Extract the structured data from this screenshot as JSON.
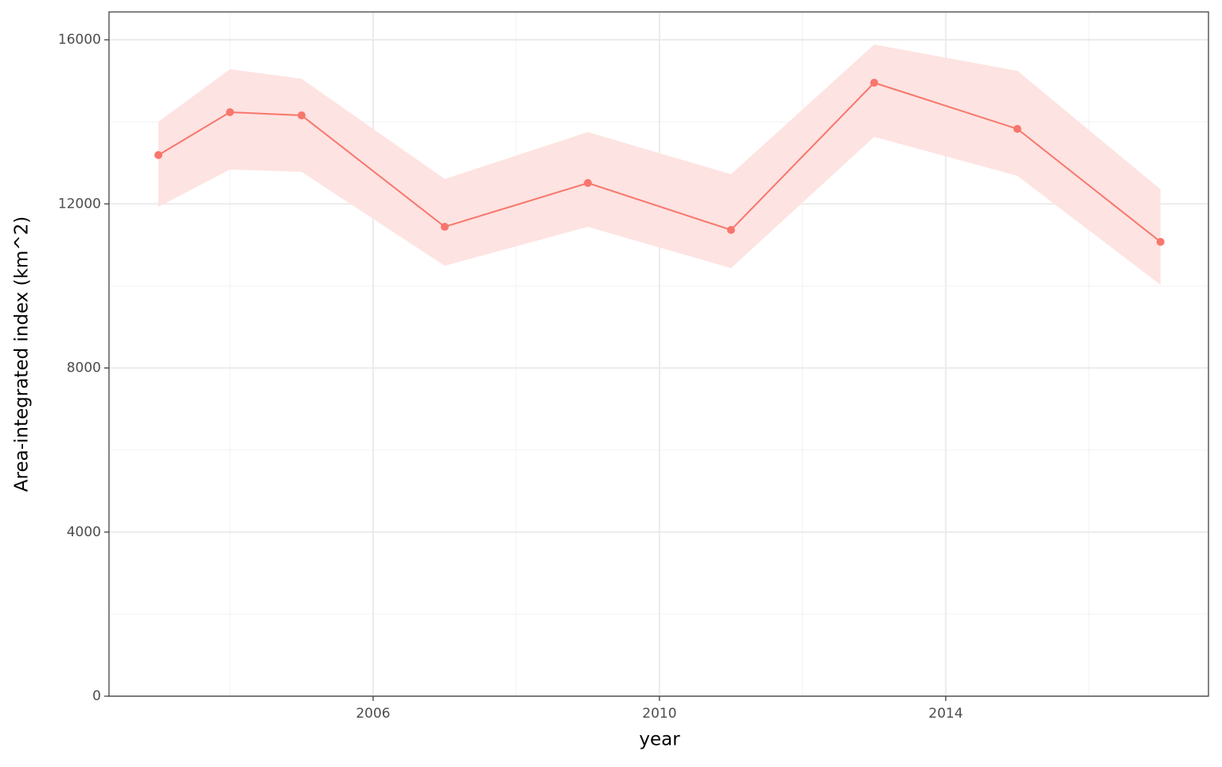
{
  "chart_data": {
    "type": "line",
    "x_label": "year",
    "y_label": "Area-integrated index (km^2)",
    "x": [
      2003,
      2004,
      2005,
      2007,
      2009,
      2011,
      2013,
      2015,
      2017
    ],
    "values": [
      13190,
      14235,
      14158,
      11442,
      12509,
      11365,
      14953,
      13828,
      11074
    ],
    "upper": [
      14003,
      15282,
      15050,
      12606,
      13750,
      12722,
      15884,
      15244,
      12354
    ],
    "lower": [
      11927,
      12839,
      12781,
      10492,
      11442,
      10434,
      13634,
      12684,
      10027
    ],
    "color": "#f8766d",
    "band_color": "#fde3e1",
    "xlim": [
      2002.31,
      2017.67
    ],
    "ylim": [
      0,
      16679
    ],
    "xticks": [
      2006,
      2010,
      2014
    ],
    "yticks": [
      0,
      4000,
      8000,
      12000,
      16000
    ],
    "x_minor_ticks": [
      2004,
      2008,
      2012,
      2016
    ],
    "y_minor_ticks": [
      2000,
      6000,
      10000,
      14000
    ],
    "grid": true
  }
}
